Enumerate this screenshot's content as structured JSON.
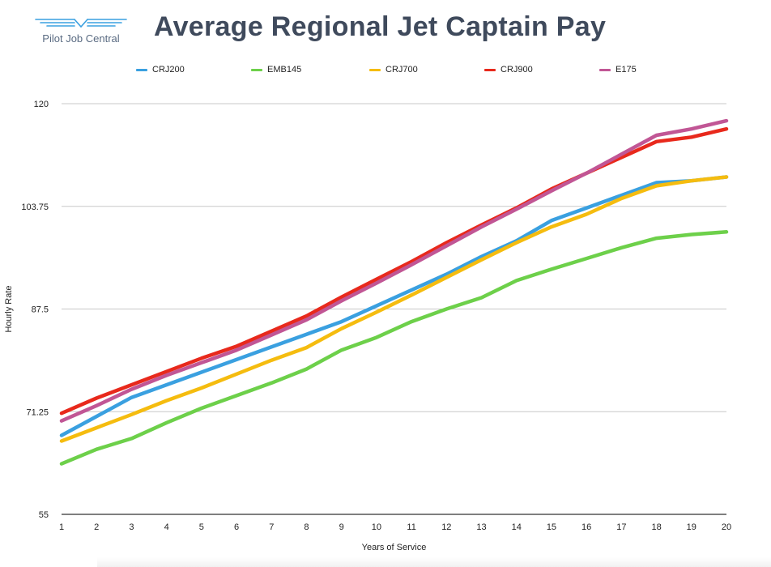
{
  "header": {
    "logo_text": "Pilot Job Central"
  },
  "chart_data": {
    "type": "line",
    "title": "Average Regional Jet Captain Pay",
    "xlabel": "Years of Service",
    "ylabel": "Hourly Rate",
    "x": [
      1,
      2,
      3,
      4,
      5,
      6,
      7,
      8,
      9,
      10,
      11,
      12,
      13,
      14,
      15,
      16,
      17,
      18,
      19,
      20
    ],
    "xlim": [
      1,
      20
    ],
    "ylim": [
      55,
      120
    ],
    "yticks": [
      55,
      71.25,
      87.5,
      103.75,
      120
    ],
    "ytick_labels": [
      "55",
      "71.25",
      "87.5",
      "103.75",
      "120"
    ],
    "grid": true,
    "legend_position": "top",
    "series": [
      {
        "name": "CRJ200",
        "color": "#3aa0e0",
        "values": [
          67.5,
          70.5,
          73.5,
          75.5,
          77.5,
          79.5,
          81.5,
          83.5,
          85.5,
          88.0,
          90.5,
          93.0,
          95.8,
          98.3,
          101.5,
          103.5,
          105.5,
          107.5,
          107.8,
          108.4
        ]
      },
      {
        "name": "EMB145",
        "color": "#6dd04a",
        "values": [
          63.0,
          65.3,
          67.0,
          69.5,
          71.8,
          73.8,
          75.8,
          78.0,
          81.0,
          83.0,
          85.5,
          87.5,
          89.3,
          92.0,
          93.8,
          95.5,
          97.2,
          98.7,
          99.3,
          99.7
        ]
      },
      {
        "name": "CRJ700",
        "color": "#f5bc0f",
        "values": [
          66.6,
          68.7,
          70.8,
          73.0,
          75.0,
          77.2,
          79.4,
          81.4,
          84.4,
          87.0,
          89.7,
          92.5,
          95.3,
          98.0,
          100.5,
          102.5,
          105.0,
          107.0,
          107.8,
          108.4
        ]
      },
      {
        "name": "CRJ900",
        "color": "#e8291c",
        "values": [
          71.0,
          73.4,
          75.5,
          77.6,
          79.7,
          81.6,
          84.0,
          86.4,
          89.4,
          92.2,
          95.0,
          98.0,
          100.8,
          103.5,
          106.5,
          109.0,
          111.5,
          114.0,
          114.7,
          116.0
        ]
      },
      {
        "name": "E175",
        "color": "#c15695",
        "values": [
          69.8,
          72.2,
          74.8,
          77.0,
          79.0,
          81.0,
          83.4,
          85.8,
          88.8,
          91.6,
          94.5,
          97.5,
          100.5,
          103.3,
          106.2,
          109.0,
          112.0,
          115.0,
          116.0,
          117.3
        ]
      }
    ]
  }
}
